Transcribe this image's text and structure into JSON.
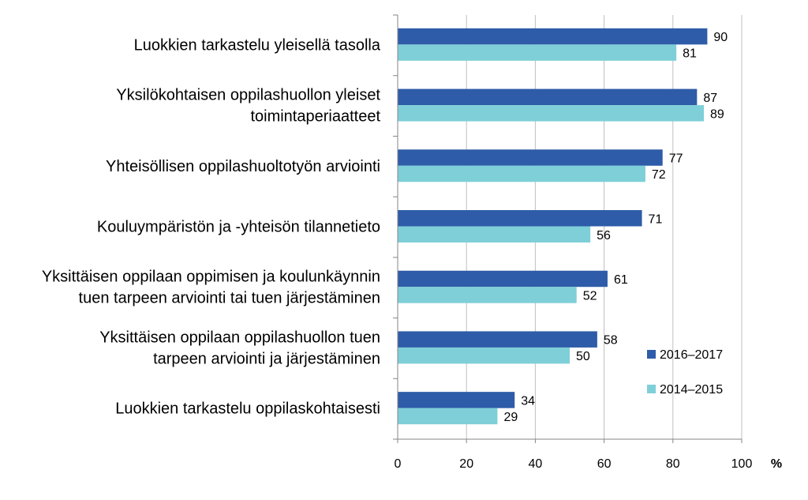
{
  "chart_data": {
    "type": "bar",
    "orientation": "horizontal",
    "categories": [
      [
        "Luokkien tarkastelu yleisellä tasolla"
      ],
      [
        "Yksilökohtaisen oppilashuollon yleiset",
        "toimintaperiaatteet"
      ],
      [
        "Yhteisöllisen oppilashuoltotyön arviointi"
      ],
      [
        "Kouluympäristön ja -yhteisön tilannetieto"
      ],
      [
        "Yksittäisen oppilaan oppimisen ja koulunkäynnin",
        "tuen tarpeen arviointi tai tuen järjestäminen"
      ],
      [
        "Yksittäisen oppilaan oppilashuollon tuen",
        "tarpeen arviointi ja järjestäminen"
      ],
      [
        "Luokkien tarkastelu oppilaskohtaisesti"
      ]
    ],
    "series": [
      {
        "name": "2016–2017",
        "color": "#2e5ca8",
        "values": [
          90,
          87,
          77,
          71,
          61,
          58,
          34
        ]
      },
      {
        "name": "2014–2015",
        "color": "#7ecfd8",
        "values": [
          81,
          89,
          72,
          56,
          52,
          50,
          29
        ]
      }
    ],
    "xlim": [
      0,
      100
    ],
    "xticks": [
      0,
      20,
      40,
      60,
      80,
      100
    ],
    "xunit": "%",
    "grid": "vertical",
    "legend_position": "lower-right"
  }
}
